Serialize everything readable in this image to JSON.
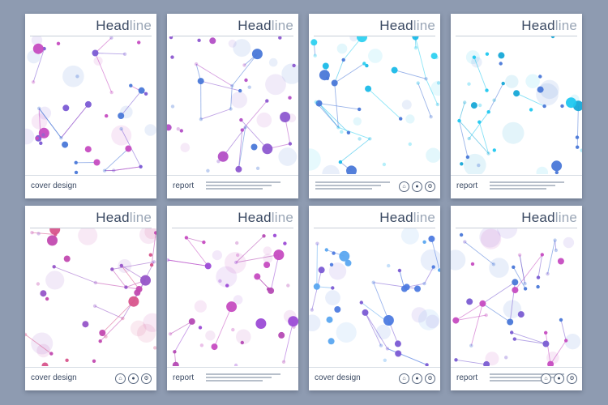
{
  "cards": [
    {
      "title_a": "Head",
      "title_b": "line",
      "footer_label": "cover design",
      "has_icons": false,
      "has_text": false,
      "palette": [
        "#4a78d8",
        "#7b5bd4",
        "#c64cc1"
      ]
    },
    {
      "title_a": "Head",
      "title_b": "line",
      "footer_label": "report",
      "has_icons": false,
      "has_text": true,
      "palette": [
        "#4a78d8",
        "#8d58d0",
        "#b34fc6"
      ]
    },
    {
      "title_a": "Head",
      "title_b": "line",
      "footer_label": "",
      "has_icons": true,
      "has_text": true,
      "palette": [
        "#1bbbe8",
        "#2fd1f0",
        "#4a78d8"
      ]
    },
    {
      "title_a": "Head",
      "title_b": "line",
      "footer_label": "report",
      "has_icons": false,
      "has_text": true,
      "palette": [
        "#21c8f0",
        "#17a8d7",
        "#4a78d8"
      ]
    },
    {
      "title_a": "Head",
      "title_b": "line",
      "footer_label": "cover design",
      "has_icons": true,
      "has_text": false,
      "palette": [
        "#c24ab0",
        "#d8558c",
        "#9655c8"
      ]
    },
    {
      "title_a": "Head",
      "title_b": "line",
      "footer_label": "report",
      "has_icons": false,
      "has_text": true,
      "palette": [
        "#b54ab4",
        "#9c4bd6",
        "#c64cc1"
      ]
    },
    {
      "title_a": "Head",
      "title_b": "line",
      "footer_label": "cover design",
      "has_icons": true,
      "has_text": false,
      "palette": [
        "#4e7be0",
        "#7b5bd4",
        "#5aa7f0"
      ]
    },
    {
      "title_a": "Head",
      "title_b": "line",
      "footer_label": "report",
      "has_icons": true,
      "has_text": true,
      "palette": [
        "#4a78d8",
        "#7a5cd2",
        "#c64cc1"
      ]
    }
  ],
  "icons": [
    "home-icon",
    "user-icon",
    "settings-icon"
  ]
}
